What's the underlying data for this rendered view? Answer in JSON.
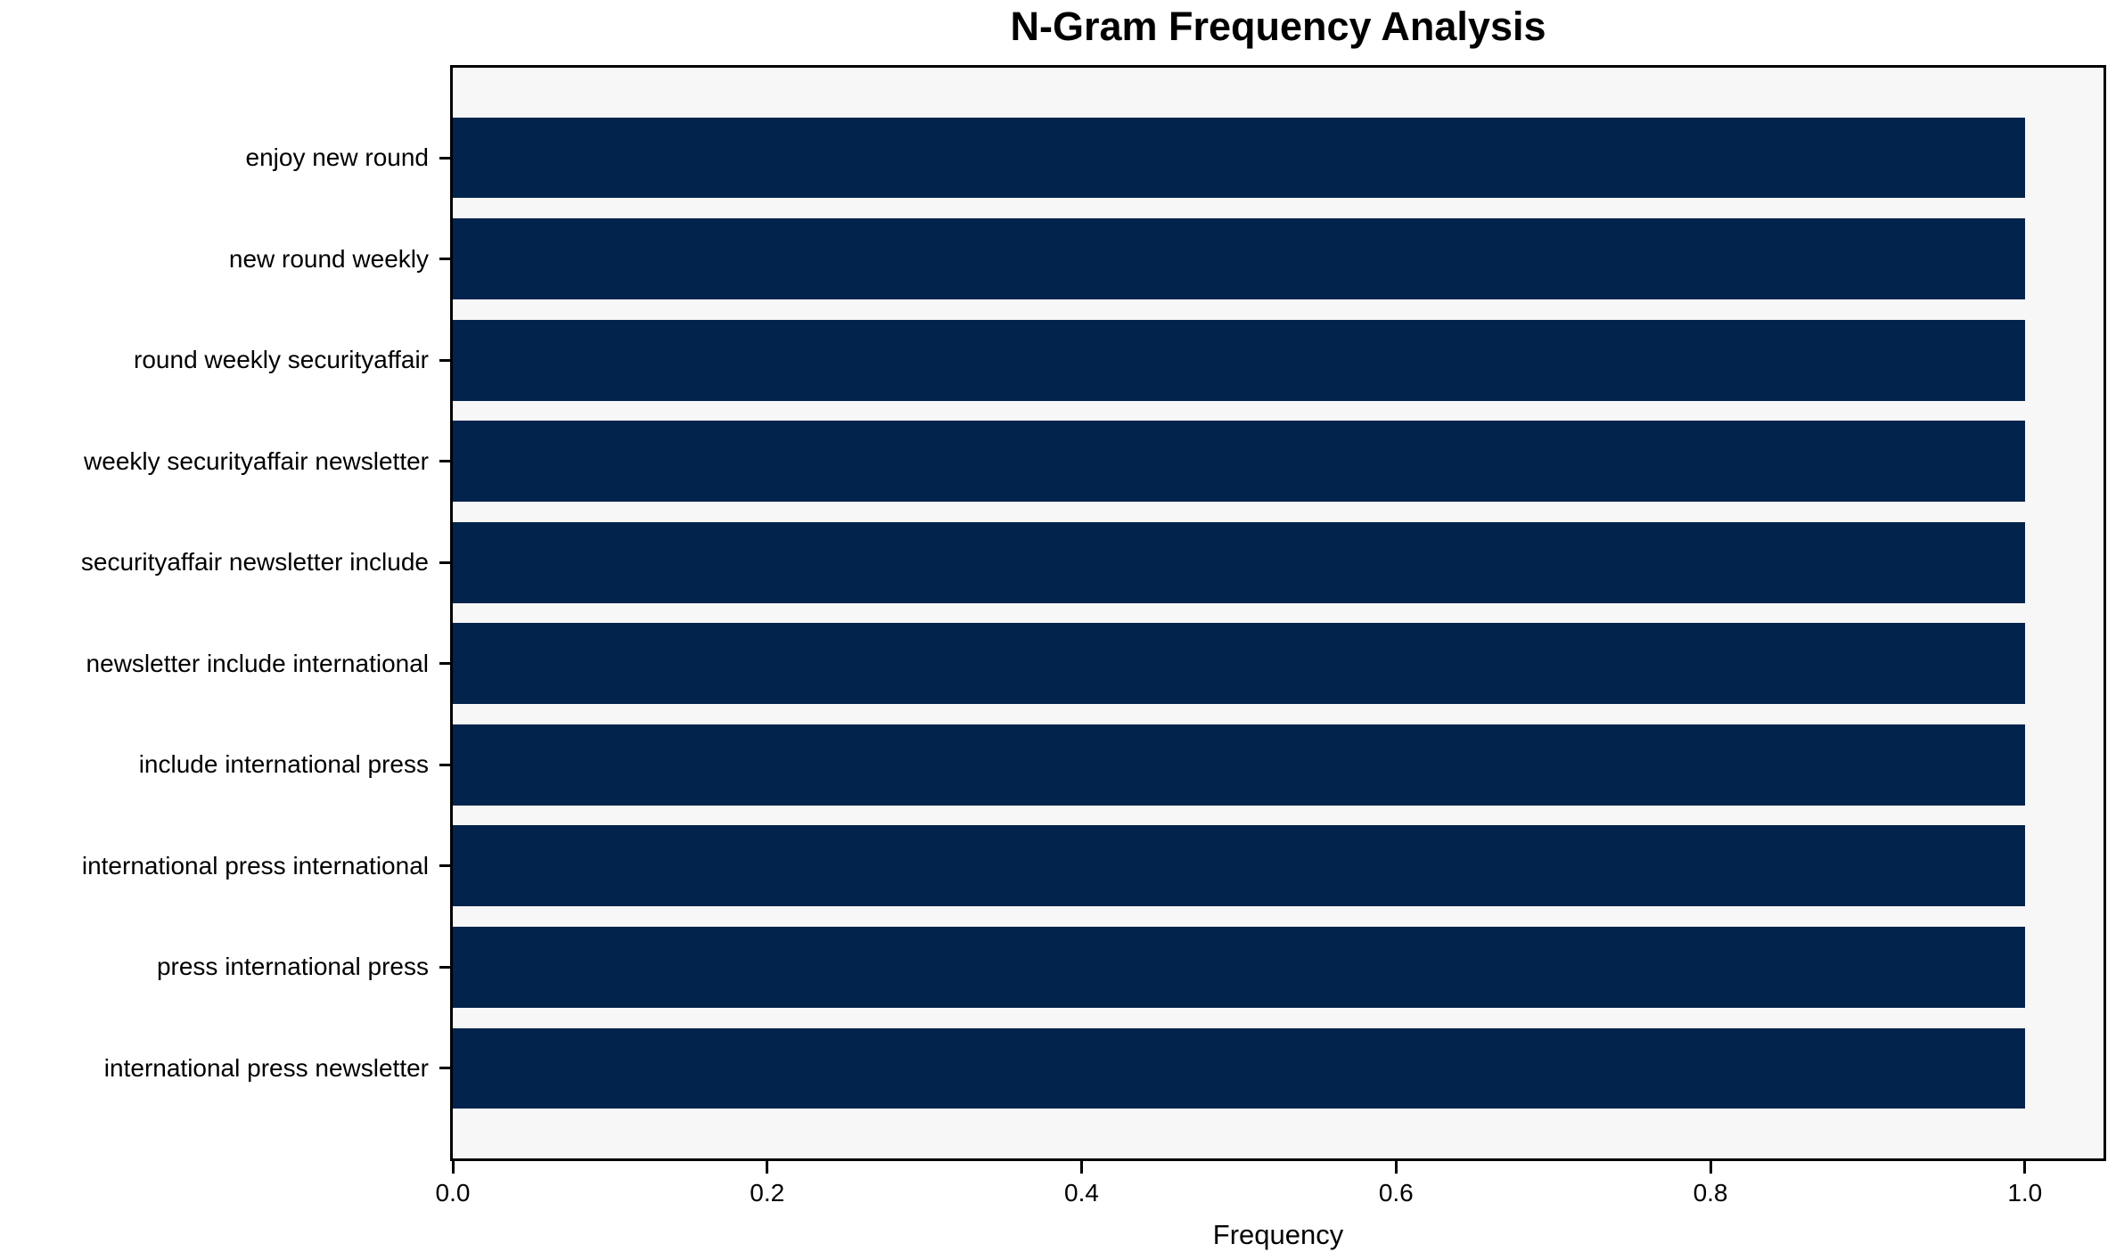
{
  "chart_data": {
    "type": "bar",
    "orientation": "horizontal",
    "title": "N-Gram Frequency Analysis",
    "xlabel": "Frequency",
    "ylabel": "",
    "categories": [
      "enjoy new round",
      "new round weekly",
      "round weekly securityaffair",
      "weekly securityaffair newsletter",
      "securityaffair newsletter include",
      "newsletter include international",
      "include international press",
      "international press international",
      "press international press",
      "international press newsletter"
    ],
    "values": [
      1.0,
      1.0,
      1.0,
      1.0,
      1.0,
      1.0,
      1.0,
      1.0,
      1.0,
      1.0
    ],
    "xlim": [
      0,
      1.05
    ],
    "xticks": [
      0.0,
      0.2,
      0.4,
      0.6,
      0.8,
      1.0
    ],
    "xtick_labels": [
      "0.0",
      "0.2",
      "0.4",
      "0.6",
      "0.8",
      "1.0"
    ],
    "grid": false,
    "legend": null,
    "colors": {
      "bar": "#02234c",
      "plot_bg": "#f7f7f7",
      "figure_bg": "#ffffff",
      "text": "#000000",
      "axis": "#000000"
    }
  }
}
